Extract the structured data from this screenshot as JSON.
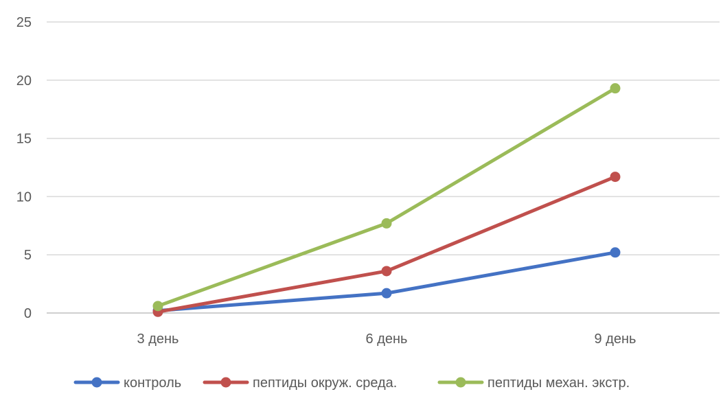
{
  "chart_data": {
    "type": "line",
    "categories": [
      "3 день",
      "6 день",
      "9 день"
    ],
    "series": [
      {
        "name": "контроль",
        "color": "#4472c4",
        "values": [
          0.2,
          1.7,
          5.2
        ]
      },
      {
        "name": "пептиды окруж. среда.",
        "color": "#c0504d",
        "values": [
          0.1,
          3.6,
          11.7
        ]
      },
      {
        "name": "пептиды механ. экстр.",
        "color": "#9bbb59",
        "values": [
          0.6,
          7.7,
          19.3
        ]
      }
    ],
    "yticks": [
      "0",
      "5",
      "10",
      "15",
      "20",
      "25"
    ],
    "ylim": [
      0,
      25
    ],
    "grid": true,
    "legend_position": "bottom",
    "title": "",
    "xlabel": "",
    "ylabel": ""
  }
}
